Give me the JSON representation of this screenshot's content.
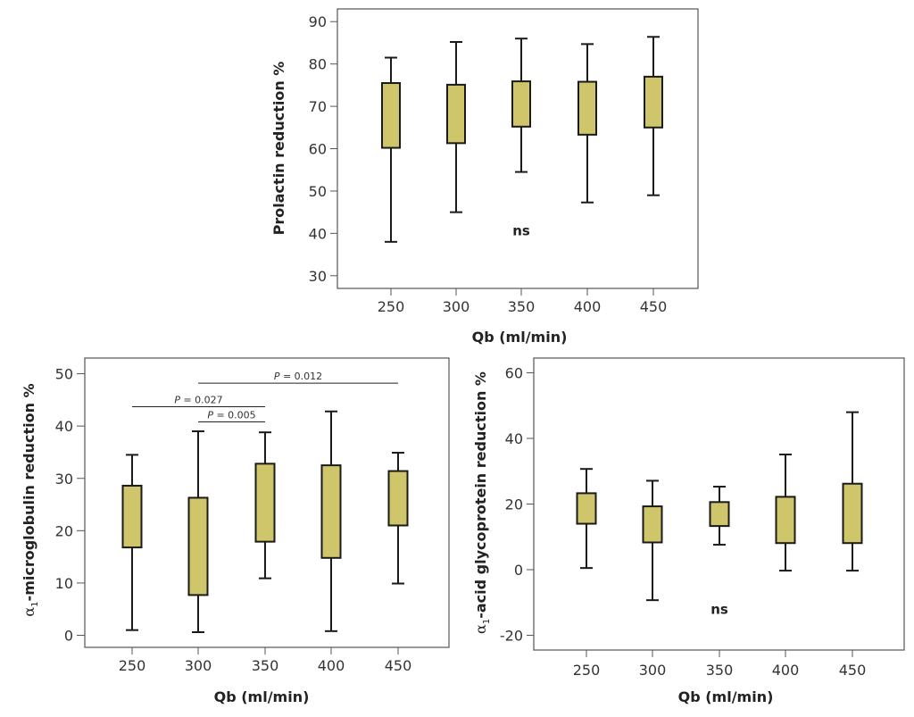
{
  "colors": {
    "box_fill": "#cfc56a",
    "stroke": "#1a1a1a",
    "frame": "#555555"
  },
  "chart_data": [
    {
      "id": "prolactin",
      "type": "boxplot",
      "title": "",
      "xlabel": "Qb (ml/min)",
      "ylabel": "Prolactin reduction %",
      "ylabel_sub": "",
      "categories": [
        "250",
        "300",
        "350",
        "400",
        "450"
      ],
      "yticks": [
        30,
        40,
        50,
        60,
        70,
        80,
        90
      ],
      "ylim": [
        27,
        93
      ],
      "boxes": [
        {
          "min": 38,
          "q1": 60.2,
          "q3": 75.5,
          "max": 81.5
        },
        {
          "min": 45,
          "q1": 61.3,
          "q3": 75.1,
          "max": 85.2
        },
        {
          "min": 54.5,
          "q1": 65.2,
          "q3": 75.9,
          "max": 86
        },
        {
          "min": 47.3,
          "q1": 63.3,
          "q3": 75.8,
          "max": 84.7
        },
        {
          "min": 49,
          "q1": 65,
          "q3": 77,
          "max": 86.4
        }
      ],
      "annotations": [
        {
          "text": "ns",
          "x_index": 2,
          "y": 39.5
        }
      ],
      "comparisons": []
    },
    {
      "id": "a1-microglobulin",
      "type": "boxplot",
      "title": "",
      "xlabel": "Qb (ml/min)",
      "ylabel": "-microglobulin reduction %",
      "ylabel_prefix": "α",
      "ylabel_sub": "1",
      "categories": [
        "250",
        "300",
        "350",
        "400",
        "450"
      ],
      "yticks": [
        0,
        10,
        20,
        30,
        40,
        50
      ],
      "ylim": [
        -2.3,
        53
      ],
      "boxes": [
        {
          "min": 1,
          "q1": 16.8,
          "q3": 28.6,
          "max": 34.5
        },
        {
          "min": 0.6,
          "q1": 7.7,
          "q3": 26.3,
          "max": 39
        },
        {
          "min": 10.9,
          "q1": 17.9,
          "q3": 32.8,
          "max": 38.8
        },
        {
          "min": 0.8,
          "q1": 14.8,
          "q3": 32.5,
          "max": 42.8
        },
        {
          "min": 9.9,
          "q1": 21,
          "q3": 31.4,
          "max": 34.9
        }
      ],
      "annotations": [],
      "comparisons": [
        {
          "from_index": 0,
          "to_index": 2,
          "y": 43.7,
          "label_prefix": "P",
          "label_value": " = 0.027"
        },
        {
          "from_index": 1,
          "to_index": 2,
          "y": 40.8,
          "label_prefix": "P",
          "label_value": " = 0.005"
        },
        {
          "from_index": 1,
          "to_index": 4,
          "y": 48.2,
          "label_prefix": "P",
          "label_value": " = 0.012"
        }
      ]
    },
    {
      "id": "a1-acid-glycoprotein",
      "type": "boxplot",
      "title": "",
      "xlabel": "Qb (ml/min)",
      "ylabel": "-acid glycoprotein reduction %",
      "ylabel_prefix": "α",
      "ylabel_sub": "1",
      "categories": [
        "250",
        "300",
        "350",
        "400",
        "450"
      ],
      "yticks": [
        -20,
        0,
        20,
        40,
        60
      ],
      "ylim": [
        -24.5,
        64.5
      ],
      "boxes": [
        {
          "min": 0.5,
          "q1": 14,
          "q3": 23.3,
          "max": 30.7
        },
        {
          "min": -9.3,
          "q1": 8.3,
          "q3": 19.3,
          "max": 27.1
        },
        {
          "min": 7.6,
          "q1": 13.3,
          "q3": 20.6,
          "max": 25.3
        },
        {
          "min": -0.3,
          "q1": 8.1,
          "q3": 22.2,
          "max": 35.1
        },
        {
          "min": -0.3,
          "q1": 8.1,
          "q3": 26.2,
          "max": 48
        }
      ],
      "annotations": [
        {
          "text": "ns",
          "x_index": 2,
          "y": -13.5
        }
      ],
      "comparisons": []
    }
  ]
}
